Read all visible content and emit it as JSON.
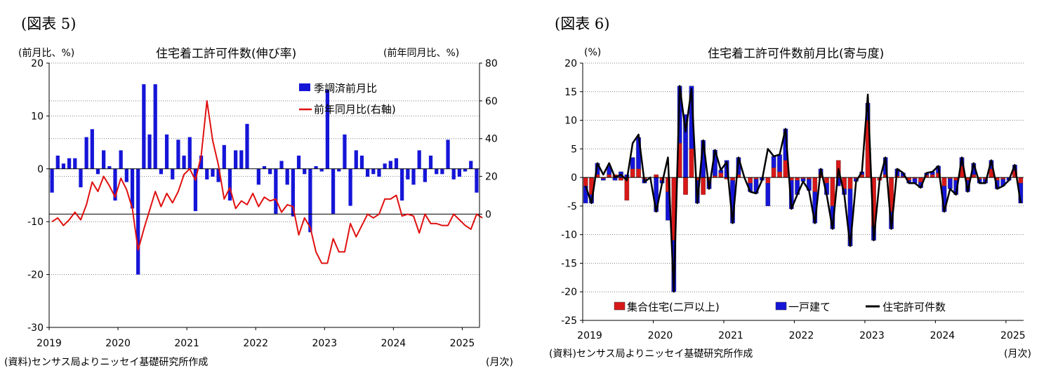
{
  "left_panel": {
    "figure_label": "(図表 5)",
    "unit_left": "(前月比、%)",
    "unit_right": "(前年同月比、%)",
    "source": "(資料)センサス局よりニッセイ基礎研究所作成",
    "month_label": "(月次)"
  },
  "right_panel": {
    "figure_label": "(図表 6)",
    "unit": "(%)",
    "source": "(資料)センサス局よりニッセイ基礎研究所作成",
    "month_label": "(月次)"
  },
  "colors": {
    "bar_blue": "#1515d8",
    "line_red": "#e01010",
    "bar_red": "#d81818",
    "line_black": "#000000",
    "grid": "#7f7f7f"
  },
  "chart_data": [
    {
      "type": "bar+line",
      "title": "住宅着工許可件数(伸び率)",
      "x_tick_labels": [
        "2019",
        "2020",
        "2021",
        "2022",
        "2023",
        "2024",
        "2025"
      ],
      "x_start": "2019-01",
      "ylim_left": [
        -30,
        20
      ],
      "yticks_left": [
        -30,
        -20,
        -10,
        0,
        10,
        20
      ],
      "ylim_right": [
        -60,
        80
      ],
      "yticks_right": [
        0,
        20,
        40,
        60,
        80
      ],
      "legend_position": "top-center",
      "series": [
        {
          "name": "季調済前月比",
          "kind": "bar",
          "axis": "left",
          "values": [
            -4.5,
            2.5,
            1,
            2,
            2,
            -3.5,
            6,
            7.5,
            -1,
            3.5,
            0.5,
            -6,
            3.5,
            -2.5,
            -7.5,
            -20,
            16,
            6.5,
            16,
            -1,
            6.5,
            -2,
            5.5,
            2.5,
            6,
            -8,
            2.5,
            -2,
            -1.5,
            -2.5,
            4.5,
            -6,
            3.5,
            3.5,
            8.5,
            0,
            -3,
            0.5,
            -1,
            -8.5,
            1.5,
            -3,
            -9,
            2.5,
            -1,
            -12,
            0.5,
            -0.5,
            15,
            -8.5,
            -0.5,
            6.5,
            -7,
            3.5,
            2.5,
            -1.5,
            -1,
            -1.5,
            1,
            1.5,
            2,
            -6,
            -2,
            -3,
            3.5,
            -2.5,
            2.5,
            -1,
            -1,
            5.5,
            -2,
            -1.5,
            -0.5,
            1.5,
            -4.5
          ]
        },
        {
          "name": "前年同月比(右軸)",
          "kind": "line",
          "axis": "right",
          "values": [
            -4,
            -2,
            -6,
            -3,
            1,
            -3,
            5,
            17,
            12,
            20,
            15,
            9,
            19,
            13,
            3,
            -19,
            -8,
            2,
            12,
            4,
            11,
            6,
            12,
            21,
            24,
            18,
            31,
            60,
            39,
            26,
            8,
            14,
            3,
            7,
            5,
            11,
            4,
            9,
            7,
            8,
            1,
            5,
            4,
            -11,
            -2,
            -7,
            -20,
            -26,
            -26,
            -13,
            -20,
            -20,
            -5,
            -12,
            -6,
            0,
            -2,
            0,
            8,
            8,
            10,
            -1,
            0,
            -1,
            -10,
            0,
            -5,
            -5,
            -6,
            -6,
            0,
            -3,
            -6,
            -8,
            0,
            -2
          ]
        }
      ]
    },
    {
      "type": "stacked-bar+line",
      "title": "住宅着工許可件数前月比(寄与度)",
      "x_tick_labels": [
        "2019",
        "2020",
        "2021",
        "2022",
        "2023",
        "2024",
        "2025"
      ],
      "x_start": "2019-01",
      "ylim": [
        -25,
        20
      ],
      "yticks": [
        -25,
        -20,
        -15,
        -10,
        -5,
        0,
        5,
        10,
        15,
        20
      ],
      "legend_position": "bottom-left",
      "series": [
        {
          "name": "集合住宅(二戸以上)",
          "kind": "bar",
          "values": [
            -1.5,
            -3,
            0.5,
            -0.2,
            0.5,
            0.5,
            -0.5,
            -4,
            1.5,
            1.5,
            -0.3,
            0,
            0.5,
            -0.5,
            -2.5,
            -11,
            6,
            -3,
            5,
            -0.5,
            -3,
            -0.5,
            0.3,
            0.8,
            -0.3,
            -0.5,
            0.5,
            0,
            -1,
            -0.3,
            0,
            -1,
            1.7,
            1,
            3,
            -0.5,
            -0.5,
            -0.2,
            -0.3,
            -2.5,
            0.5,
            -1,
            -5,
            3,
            -2,
            -2,
            -0.2,
            0.5,
            10,
            -8.5,
            -0.5,
            0.5,
            -6,
            0.3,
            0.2,
            -0.5,
            -0.2,
            -0.8,
            0.4,
            0.5,
            0.8,
            -1.5,
            -0.2,
            -0.5,
            2,
            -0.5,
            0.5,
            -0.3,
            -0.3,
            1.5,
            -0.5,
            -0.3,
            0,
            1.2,
            -1
          ]
        },
        {
          "name": "一戸建て",
          "kind": "bar",
          "values": [
            -3,
            -1.5,
            2,
            -0.3,
            1.5,
            -0.5,
            1,
            0.5,
            2,
            5.5,
            -0.7,
            0,
            -6,
            -0.5,
            -5,
            -9,
            10,
            11,
            11,
            -4,
            6.5,
            -1.5,
            4.5,
            0.5,
            3,
            -7.5,
            3,
            0,
            -1.5,
            -2.5,
            -0.5,
            -4,
            2,
            3,
            5.5,
            -5,
            -2.5,
            -0.5,
            -2,
            -5.5,
            1,
            -2,
            -4,
            -1.5,
            -1,
            -10,
            -0.5,
            0.5,
            3,
            -2.5,
            0,
            3,
            -3,
            1.2,
            0.6,
            -0.5,
            -0.8,
            -1,
            0.4,
            0.5,
            1.2,
            -4.5,
            -1.8,
            -2.5,
            1.5,
            -2,
            2,
            -0.7,
            -0.7,
            1.5,
            -1.5,
            -1.2,
            -0.5,
            1,
            -3.5
          ]
        },
        {
          "name": "住宅許可件数",
          "kind": "line",
          "values": [
            -1.5,
            -4.5,
            2.5,
            0.5,
            2.5,
            0,
            0.5,
            -0.5,
            6,
            7.5,
            -0.8,
            0,
            -6,
            -1,
            3.5,
            -20,
            16,
            8,
            15.5,
            -4.5,
            6.5,
            -2,
            4.8,
            1.3,
            2.7,
            -8,
            3.5,
            0,
            -2.5,
            -2.8,
            -0.5,
            5,
            3.7,
            4,
            8.5,
            -5.5,
            -3,
            -0.7,
            -2.3,
            -8,
            1.5,
            -3,
            -9,
            1.5,
            -3,
            -12,
            -0.7,
            1,
            14.5,
            -11,
            -0.5,
            3.5,
            -9,
            1.5,
            0.8,
            -1,
            -1,
            -1.8,
            0.8,
            1,
            2,
            -6,
            -2,
            -3,
            3.5,
            -2.5,
            2.5,
            -1,
            -1,
            3,
            -2,
            -1.5,
            -0.5,
            2.2,
            -4.5
          ]
        }
      ]
    }
  ]
}
